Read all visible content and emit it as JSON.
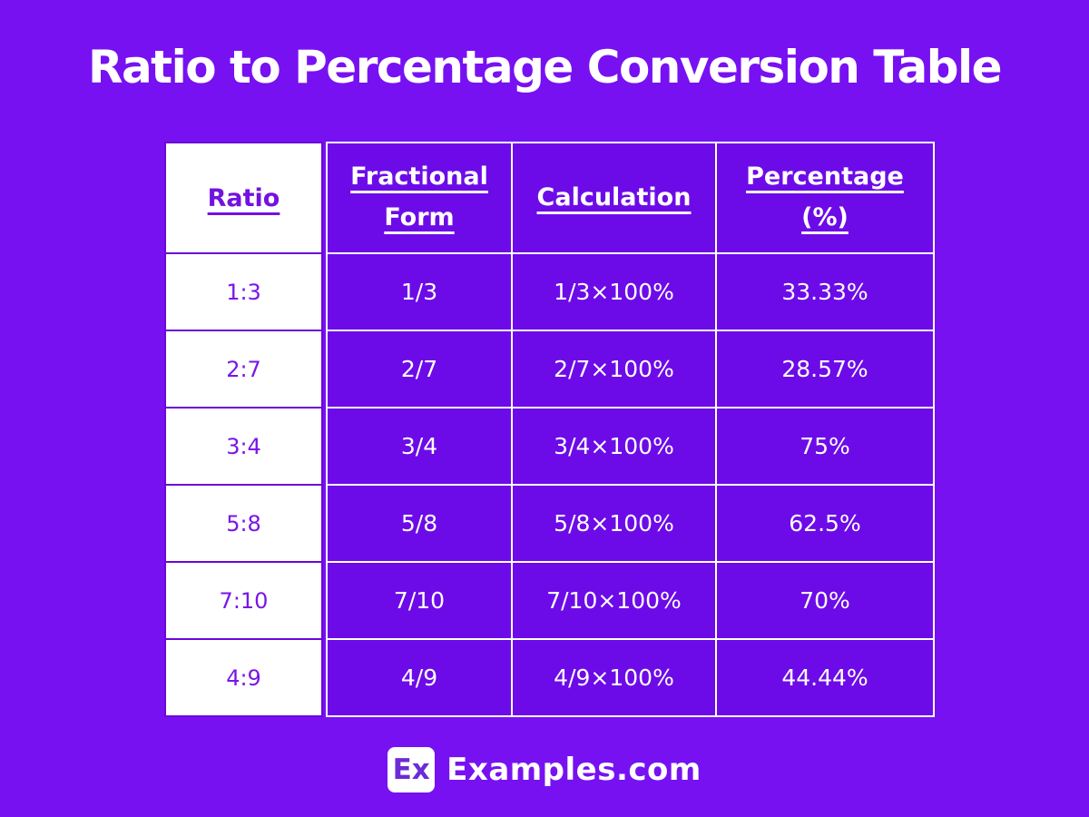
{
  "title": "Ratio to Percentage Conversion Table",
  "chart_data": {
    "type": "table",
    "title": "Ratio to Percentage Conversion Table",
    "columns": [
      "Ratio",
      "Fractional Form",
      "Calculation",
      "Percentage (%)"
    ],
    "rows": [
      [
        "1:3",
        "1/3",
        "1/3×100%",
        "33.33%"
      ],
      [
        "2:7",
        "2/7",
        "2/7×100%",
        "28.57%"
      ],
      [
        "3:4",
        "3/4",
        "3/4×100%",
        "75%"
      ],
      [
        "5:8",
        "5/8",
        "5/8×100%",
        "62.5%"
      ],
      [
        "7:10",
        "7/10",
        "7/10×100%",
        "70%"
      ],
      [
        "4:9",
        "4/9",
        "4/9×100%",
        "44.44%"
      ]
    ]
  },
  "footer": {
    "logo_text": "Ex",
    "brand": "Examples.com"
  },
  "colors": {
    "page_background": "#7711F2",
    "cell_background": "#6D0BE8",
    "white_cell_divider": "#6C07D6",
    "accent_text_purple": "#7A15E8",
    "logo_text_purple": "#6C2BD9",
    "text_white": "#FFFFFF"
  }
}
